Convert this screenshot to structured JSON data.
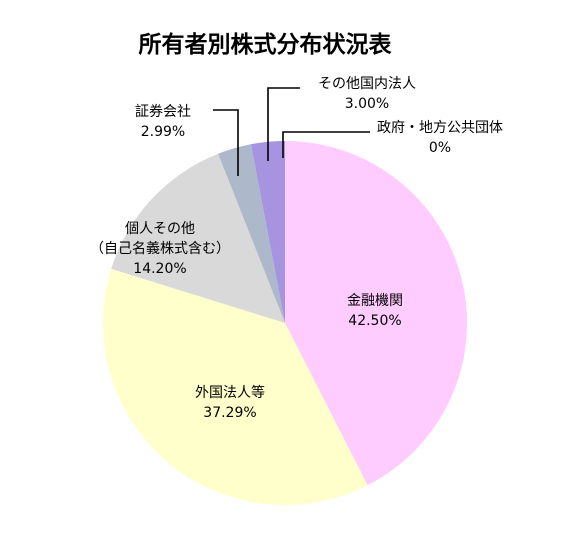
{
  "chart_data": {
    "type": "pie",
    "title": "所有者別株式分布状況表",
    "slices": [
      {
        "label": "金融機関",
        "value": 42.5,
        "value_label": "42.50%",
        "color": "#FFCCFF"
      },
      {
        "label": "外国法人等",
        "value": 37.29,
        "value_label": "37.29%",
        "color": "#FFFFCC"
      },
      {
        "label": "個人その他",
        "label2": "（自己名義株式含む）",
        "value": 14.2,
        "value_label": "14.20%",
        "color": "#D9D9D9"
      },
      {
        "label": "証券会社",
        "value": 2.99,
        "value_label": "2.99%",
        "color": "#ADB9CA"
      },
      {
        "label": "その他国内法人",
        "value": 3.0,
        "value_label": "3.00%",
        "color": "#A694E0"
      },
      {
        "label": "政府・地方公共団体",
        "value": 0,
        "value_label": "0%",
        "color": "#A694E0"
      }
    ],
    "start_angle": "12 o'clock",
    "direction": "clockwise",
    "legend": "none"
  }
}
